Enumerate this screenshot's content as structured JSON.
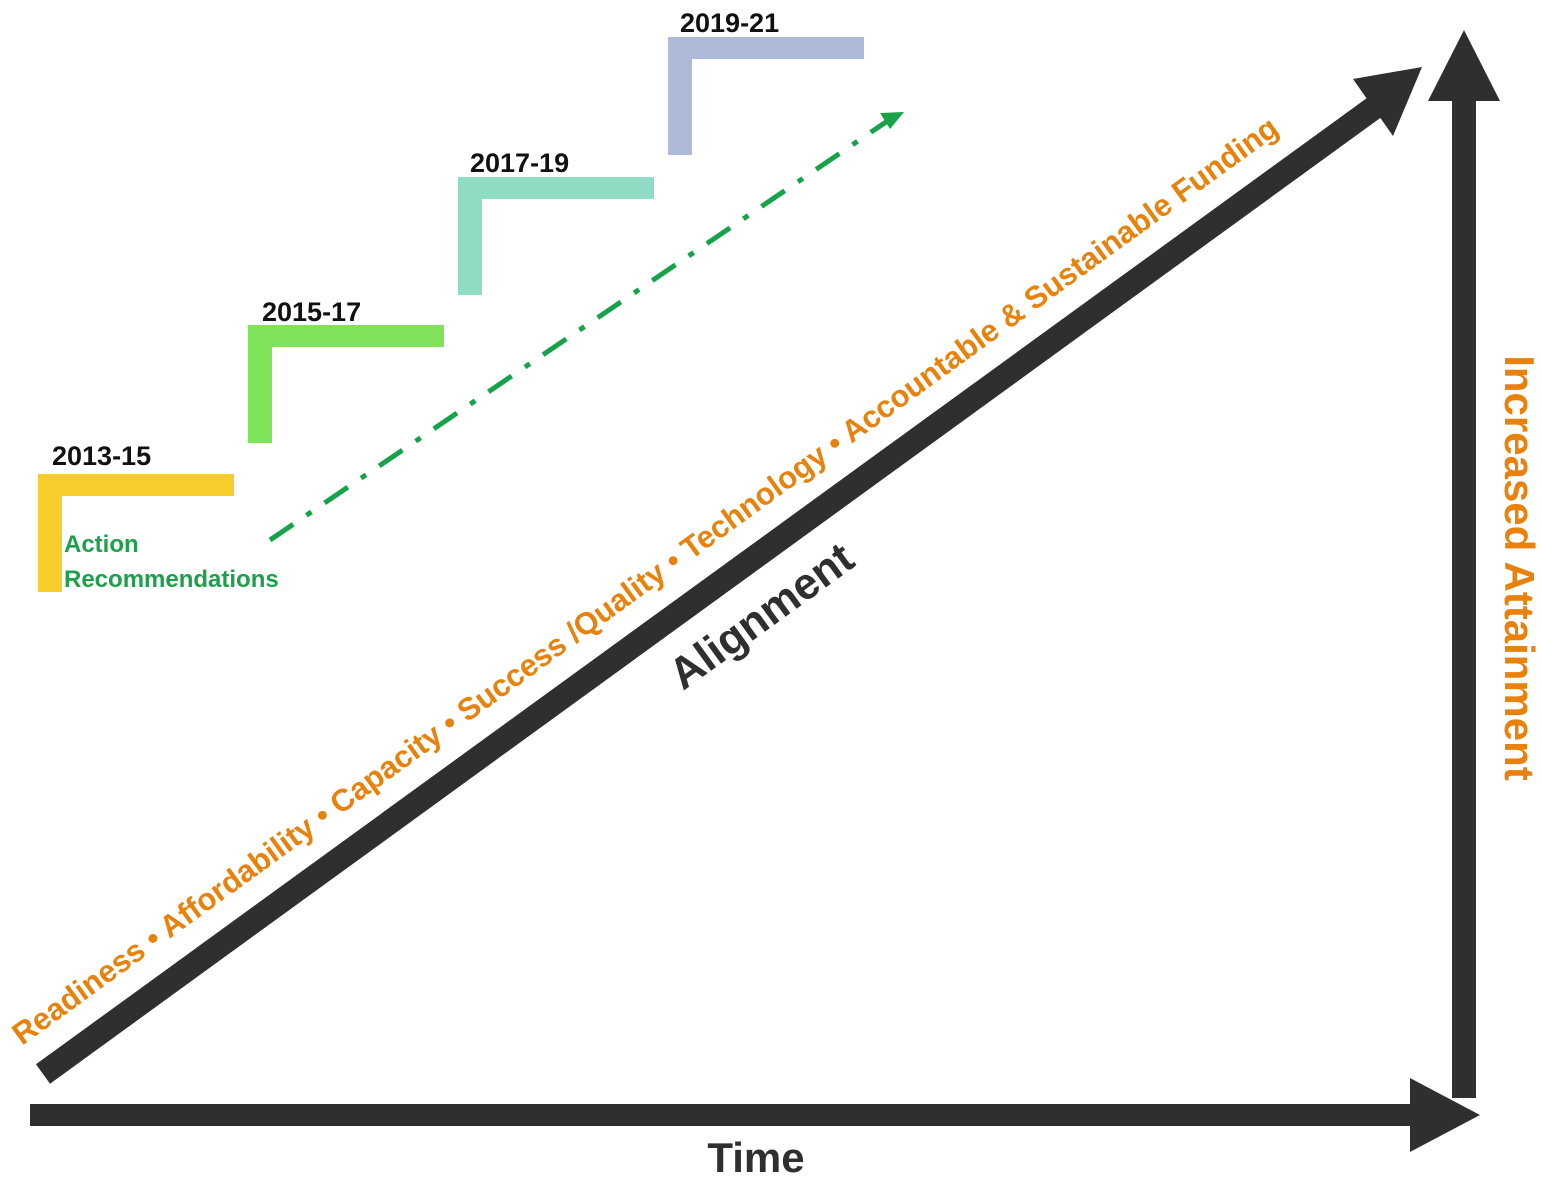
{
  "colors": {
    "axis": "#2f2f2f",
    "orange_text": "#e8820c",
    "green_text": "#1ea04b",
    "dashed_arrow": "#17a34a",
    "step_1": "#f6cd2a",
    "step_2": "#7fe35a",
    "step_3": "#8fdcc5",
    "step_4": "#aebbd8"
  },
  "steps": [
    {
      "label": "2013-15",
      "color": "#f6cd2a"
    },
    {
      "label": "2015-17",
      "color": "#7fe35a"
    },
    {
      "label": "2017-19",
      "color": "#8fdcc5"
    },
    {
      "label": "2019-21",
      "color": "#aebbd8"
    }
  ],
  "action_recommendations": {
    "line1": "Action",
    "line2": "Recommendations"
  },
  "pillars_text": "Readiness • Affordability • Capacity • Success /Quality • Technology • Accountable  & Sustainable Funding",
  "alignment_label": "Alignment",
  "x_axis_label": "Time",
  "y_axis_label": "Increased Attainment"
}
